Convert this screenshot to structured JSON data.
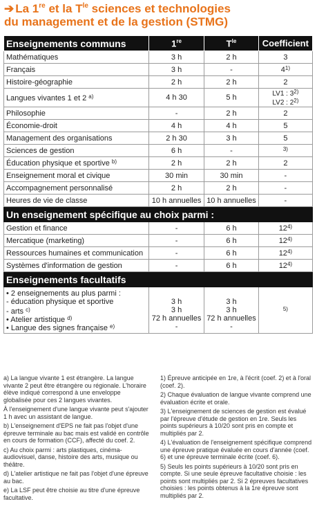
{
  "title": {
    "arrow": "➔",
    "line1_a": "La 1",
    "line1_sup1": "re",
    "line1_b": " et la T",
    "line1_sup2": "le",
    "line1_c": " sciences et technologies",
    "line2": "du management et de la gestion (STMG)"
  },
  "header": {
    "col0": "Enseignements communs",
    "col1": "1re",
    "col2": "Tle",
    "col3": "Coefficient"
  },
  "common_rows": [
    {
      "label": "Mathématiques",
      "first": "3 h",
      "term": "2 h",
      "coef": "3"
    },
    {
      "label": "Français",
      "first": "3 h",
      "term": "-",
      "coef": "4",
      "coef_note": "1)"
    },
    {
      "label": "Histoire-géographie",
      "first": "2 h",
      "term": "2 h",
      "coef": "2"
    },
    {
      "label": "Langues vivantes 1 et 2",
      "label_note": "a)",
      "first": "4 h 30",
      "term": "5 h",
      "coef_l1": "LV1 : 3",
      "coef_l1_note": "2)",
      "coef_l2": "LV2 : 2",
      "coef_l2_note": "2)"
    },
    {
      "label": "Philosophie",
      "first": "-",
      "term": "2 h",
      "coef": "2"
    },
    {
      "label": "Économie-droit",
      "first": "4 h",
      "term": "4 h",
      "coef": "5"
    },
    {
      "label": "Management des organisations",
      "first": "2 h 30",
      "term": "3 h",
      "coef": "5"
    },
    {
      "label": "Sciences de gestion",
      "first": "6 h",
      "term": "-",
      "coef": "",
      "coef_note": "3)"
    },
    {
      "label": "Éducation physique et sportive",
      "label_note": "b)",
      "first": "2 h",
      "term": "2 h",
      "coef": "2"
    },
    {
      "label": "Enseignement moral et civique",
      "first": "30 min",
      "term": "30 min",
      "coef": "-"
    },
    {
      "label": "Accompagnement personnalisé",
      "first": "2 h",
      "term": "2 h",
      "coef": "-"
    },
    {
      "label": "Heures de vie de classe",
      "first": "10 h annuelles",
      "term": "10 h annuelles",
      "coef": "-"
    }
  ],
  "band_specific": "Un enseignement spécifique au choix parmi :",
  "specific_rows": [
    {
      "label": "Gestion et finance",
      "first": "-",
      "term": "6 h",
      "coef": "12",
      "coef_note": "4)"
    },
    {
      "label": "Mercatique (marketing)",
      "first": "-",
      "term": "6 h",
      "coef": "12",
      "coef_note": "4)"
    },
    {
      "label": "Ressources humaines et communication",
      "first": "-",
      "term": "6 h",
      "coef": "12",
      "coef_note": "4)"
    },
    {
      "label": "Systèmes d'information de gestion",
      "first": "-",
      "term": "6 h",
      "coef": "12",
      "coef_note": "4)"
    }
  ],
  "band_optional": "Enseignements facultatifs",
  "optional": {
    "lines": [
      "• 2 enseignements au plus parmi :",
      "- éducation physique et sportive",
      "- arts",
      "• Atelier artistique",
      "• Langue des signes française"
    ],
    "notes": [
      "",
      "",
      "c)",
      "d)",
      "e)"
    ],
    "first": [
      "",
      "3 h",
      "3 h",
      "72 h annuelles",
      "-"
    ],
    "term": [
      "",
      "3 h",
      "3 h",
      "72 h annuelles",
      "-"
    ],
    "coef_note": "5)"
  },
  "notes_left": [
    "a) La langue vivante 1 est étrangère. La langue vivante 2 peut être étrangère ou régionale. L'horaire élève indiqué correspond à une enveloppe globalisée pour ces 2 langues vivantes.",
    "À l'enseignement d'une langue vivante peut s'ajouter 1 h avec un assistant de langue.",
    "b) L'enseignement d'EPS ne fait pas l'objet d'une épreuve terminale au bac mais est validé en contrôle en cours de formation (CCF), affecté du coef. 2.",
    "c) Au choix parmi : arts plastiques, cinéma-audiovisuel, danse, histoire des arts, musique ou théâtre.",
    "d) L'atelier artistique ne fait pas l'objet d'une épreuve au bac.",
    "e) La LSF peut être choisie au titre d'une épreuve facultative."
  ],
  "notes_right": [
    "1) Épreuve anticipée en 1re, à l'écrit (coef. 2) et à l'oral (coef. 2).",
    "2) Chaque évaluation de langue vivante comprend une évaluation écrite et orale.",
    "3) L'enseignement de sciences de gestion est évalué par l'épreuve d'étude de gestion en 1re. Seuls les points supérieurs à 10/20 sont pris en compte et multipliés par 2.",
    "4) L'évaluation de l'enseignement spécifique comprend une épreuve pratique évaluée en cours d'année (coef. 6) et une épreuve terminale écrite (coef. 6).",
    "5) Seuls les points supérieurs à 10/20 sont pris en compte. Si une seule épreuve facultative choisie : les points sont multipliés par 2. Si 2 épreuves facultatives choisies : les points obtenus à la 1re épreuve sont multipliés par 2."
  ]
}
